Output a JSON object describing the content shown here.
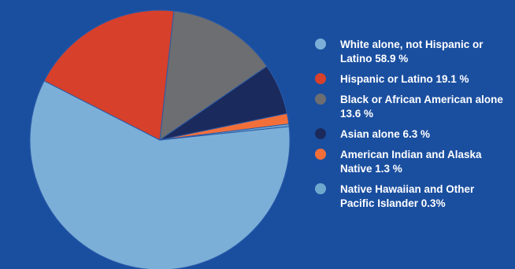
{
  "chart_data": {
    "type": "pie",
    "title": "",
    "categories": [
      "White alone, not Hispanic or Latino",
      "Hispanic or Latino",
      "Black or African American alone",
      "Asian alone",
      "American Indian and Alaska Native",
      "Native Hawaiian and Other Pacific Islander"
    ],
    "values": [
      58.9,
      19.1,
      13.6,
      6.3,
      1.3,
      0.3
    ],
    "colors": [
      "#7bafd8",
      "#d7402b",
      "#6d6e71",
      "#1b2a5c",
      "#f36f3a",
      "#6fa8cf"
    ],
    "legend_position": "right"
  },
  "legend": {
    "items": [
      {
        "label": "White alone, not Hispanic or Latino 58.9 %",
        "color": "#7bafd8"
      },
      {
        "label": "Hispanic or Latino 19.1 %",
        "color": "#d7402b"
      },
      {
        "label": "Black or African American alone 13.6 %",
        "color": "#6d6e71"
      },
      {
        "label": "Asian alone 6.3 %",
        "color": "#1b2a5c"
      },
      {
        "label": "American Indian and Alaska Native 1.3 %",
        "color": "#f36f3a"
      },
      {
        "label": "Native Hawaiian and Other Pacific Islander 0.3%",
        "color": "#6fa8cf"
      }
    ]
  }
}
